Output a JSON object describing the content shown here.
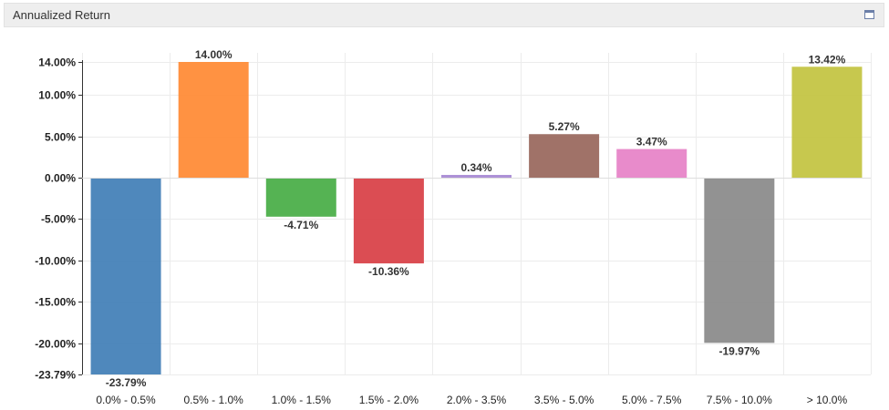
{
  "panel": {
    "title": "Annualized Return",
    "maximize_icon": "window-maximize-icon"
  },
  "chart_data": {
    "type": "bar",
    "title": "Annualized Return",
    "xlabel": "",
    "ylabel": "",
    "categories": [
      "0.0% - 0.5%",
      "0.5% - 1.0%",
      "1.0% - 1.5%",
      "1.5% - 2.0%",
      "2.0% - 3.5%",
      "3.5% - 5.0%",
      "5.0% - 7.5%",
      "7.5% - 10.0%",
      "> 10.0%"
    ],
    "values": [
      -23.79,
      14.0,
      -4.71,
      -10.36,
      0.34,
      5.27,
      3.47,
      -19.97,
      13.42
    ],
    "value_labels": [
      "-23.79%",
      "14.00%",
      "-4.71%",
      "-10.36%",
      "0.34%",
      "5.27%",
      "3.47%",
      "-19.97%",
      "13.42%"
    ],
    "colors": [
      "#4682b8",
      "#ff8c38",
      "#4caf4a",
      "#d9434a",
      "#a98bd4",
      "#9b6a60",
      "#e785c8",
      "#8c8c8c",
      "#c4c544"
    ],
    "ylim": [
      -23.79,
      14.0
    ],
    "yticks": [
      14.0,
      10.0,
      5.0,
      0.0,
      -5.0,
      -10.0,
      -15.0,
      -20.0,
      -23.79
    ],
    "ytick_labels": [
      "14.00%",
      "10.00%",
      "5.00%",
      "0.00%",
      "-5.00%",
      "-10.00%",
      "-15.00%",
      "-20.00%",
      "-23.79%"
    ],
    "grid": true,
    "legend": "none"
  }
}
